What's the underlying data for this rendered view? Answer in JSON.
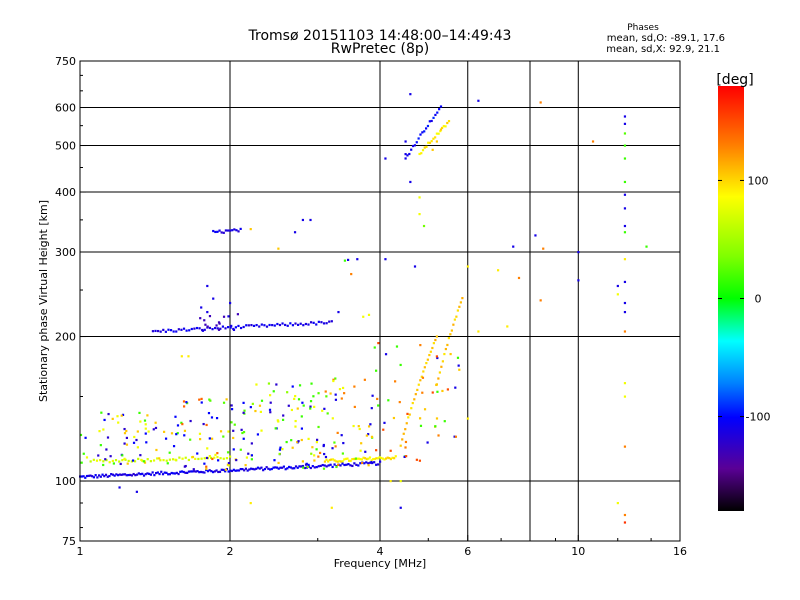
{
  "title_line1": "Tromsø 20151103 14:48:00–14:49:43",
  "title_line2": "RwPretec (8p)",
  "stats": {
    "heading": "Phases",
    "line_o": "mean, sd,O: -89.1, 17.6",
    "line_x": "mean, sd,X:  92.9, 21.1"
  },
  "colorbar": {
    "unit_label": "[deg]",
    "ticks": [
      {
        "value": 100,
        "label": "100"
      },
      {
        "value": 0,
        "label": "0"
      },
      {
        "value": -100,
        "label": "-100"
      }
    ],
    "range": [
      -180,
      180
    ]
  },
  "chart_data": {
    "type": "scatter",
    "xlabel": "Frequency [MHz]",
    "ylabel": "Stationary phase Virtual Height [km]",
    "x_scale": "log",
    "y_scale": "log",
    "xlim": [
      1,
      16
    ],
    "ylim": [
      75,
      750
    ],
    "x_ticks": [
      {
        "value": 1,
        "label": "1"
      },
      {
        "value": 2,
        "label": "2"
      },
      {
        "value": 4,
        "label": "4"
      },
      {
        "value": 6,
        "label": "6"
      },
      {
        "value": 10,
        "label": "10"
      },
      {
        "value": 16,
        "label": "16"
      }
    ],
    "x_grid": [
      2,
      4,
      6,
      8,
      10
    ],
    "y_ticks": [
      {
        "value": 75,
        "label": "75"
      },
      {
        "value": 100,
        "label": "100"
      },
      {
        "value": 200,
        "label": "200"
      },
      {
        "value": 300,
        "label": "300"
      },
      {
        "value": 400,
        "label": "400"
      },
      {
        "value": 500,
        "label": "500"
      },
      {
        "value": 600,
        "label": "600"
      },
      {
        "value": 750,
        "label": "750"
      }
    ],
    "y_grid": [
      100,
      200,
      300,
      400,
      500,
      600
    ],
    "grid": true,
    "color_variable": "phase [deg]",
    "segments": [
      {
        "x0": 1.0,
        "x1": 2.8,
        "y0": 102,
        "y1": 107,
        "phase": -110,
        "n": 130
      },
      {
        "x0": 2.8,
        "x1": 4.0,
        "y0": 107,
        "y1": 109,
        "phase": -110,
        "n": 40
      },
      {
        "x0": 1.05,
        "x1": 2.0,
        "y0": 110,
        "y1": 112,
        "phase": 80,
        "n": 45
      },
      {
        "x0": 3.1,
        "x1": 4.3,
        "y0": 110,
        "y1": 112,
        "phase": 100,
        "n": 45
      },
      {
        "x0": 1.4,
        "x1": 3.2,
        "y0": 205,
        "y1": 214,
        "phase": -110,
        "n": 70
      },
      {
        "x0": 1.85,
        "x1": 2.1,
        "y0": 330,
        "y1": 333,
        "phase": -110,
        "n": 14
      },
      {
        "x0": 4.4,
        "x1": 5.2,
        "y0": 118,
        "y1": 200,
        "phase": 110,
        "n": 25
      },
      {
        "x0": 5.2,
        "x1": 5.85,
        "y0": 160,
        "y1": 240,
        "phase": 110,
        "n": 18
      },
      {
        "x0": 4.5,
        "x1": 5.3,
        "y0": 470,
        "y1": 600,
        "phase": -100,
        "n": 20
      },
      {
        "x0": 4.8,
        "x1": 5.5,
        "y0": 480,
        "y1": 560,
        "phase": 100,
        "n": 18
      }
    ],
    "points": [
      {
        "x": 5.1,
        "y": 490,
        "phase": 110
      },
      {
        "x": 5.2,
        "y": 510,
        "phase": 110
      },
      {
        "x": 5.3,
        "y": 540,
        "phase": 110
      },
      {
        "x": 4.6,
        "y": 640,
        "phase": -110
      },
      {
        "x": 6.3,
        "y": 620,
        "phase": -110
      },
      {
        "x": 8.4,
        "y": 615,
        "phase": 130
      },
      {
        "x": 10.7,
        "y": 510,
        "phase": 130
      },
      {
        "x": 12.4,
        "y": 575,
        "phase": -110
      },
      {
        "x": 12.4,
        "y": 555,
        "phase": -110
      },
      {
        "x": 12.4,
        "y": 530,
        "phase": 30
      },
      {
        "x": 12.4,
        "y": 500,
        "phase": 20
      },
      {
        "x": 12.4,
        "y": 470,
        "phase": 20
      },
      {
        "x": 12.4,
        "y": 420,
        "phase": 20
      },
      {
        "x": 12.4,
        "y": 395,
        "phase": -110
      },
      {
        "x": 12.4,
        "y": 370,
        "phase": -110
      },
      {
        "x": 12.4,
        "y": 340,
        "phase": -110
      },
      {
        "x": 12.4,
        "y": 330,
        "phase": 20
      },
      {
        "x": 12.4,
        "y": 290,
        "phase": 100
      },
      {
        "x": 12.4,
        "y": 260,
        "phase": -110
      },
      {
        "x": 12.4,
        "y": 235,
        "phase": -110
      },
      {
        "x": 12.4,
        "y": 225,
        "phase": -110
      },
      {
        "x": 12.4,
        "y": 205,
        "phase": 130
      },
      {
        "x": 12.4,
        "y": 160,
        "phase": 90
      },
      {
        "x": 12.4,
        "y": 150,
        "phase": 90
      },
      {
        "x": 12.4,
        "y": 118,
        "phase": 130
      },
      {
        "x": 12.4,
        "y": 85,
        "phase": 130
      },
      {
        "x": 12.4,
        "y": 82,
        "phase": 160
      },
      {
        "x": 12.0,
        "y": 90,
        "phase": 90
      },
      {
        "x": 12.0,
        "y": 245,
        "phase": 90
      },
      {
        "x": 12.0,
        "y": 255,
        "phase": -110
      },
      {
        "x": 13.7,
        "y": 308,
        "phase": 20
      },
      {
        "x": 8.5,
        "y": 305,
        "phase": 130
      },
      {
        "x": 8.4,
        "y": 238,
        "phase": 130
      },
      {
        "x": 8.2,
        "y": 325,
        "phase": -110
      },
      {
        "x": 10.0,
        "y": 300,
        "phase": -110
      },
      {
        "x": 10.0,
        "y": 262,
        "phase": -110
      },
      {
        "x": 7.6,
        "y": 265,
        "phase": 130
      },
      {
        "x": 7.4,
        "y": 308,
        "phase": -110
      },
      {
        "x": 6.9,
        "y": 275,
        "phase": 100
      },
      {
        "x": 6.0,
        "y": 280,
        "phase": 100
      },
      {
        "x": 6.3,
        "y": 205,
        "phase": 100
      },
      {
        "x": 7.2,
        "y": 210,
        "phase": 100
      },
      {
        "x": 6.0,
        "y": 135,
        "phase": 100
      },
      {
        "x": 4.5,
        "y": 510,
        "phase": -110
      },
      {
        "x": 4.5,
        "y": 480,
        "phase": -110
      },
      {
        "x": 4.6,
        "y": 420,
        "phase": -110
      },
      {
        "x": 4.8,
        "y": 390,
        "phase": 90
      },
      {
        "x": 4.8,
        "y": 360,
        "phase": 90
      },
      {
        "x": 4.9,
        "y": 340,
        "phase": 40
      },
      {
        "x": 4.1,
        "y": 470,
        "phase": -110
      },
      {
        "x": 4.1,
        "y": 290,
        "phase": -110
      },
      {
        "x": 4.7,
        "y": 280,
        "phase": -110
      },
      {
        "x": 3.6,
        "y": 290,
        "phase": -110
      },
      {
        "x": 3.4,
        "y": 288,
        "phase": 20
      },
      {
        "x": 3.45,
        "y": 289,
        "phase": -110
      },
      {
        "x": 3.5,
        "y": 270,
        "phase": 130
      },
      {
        "x": 2.8,
        "y": 350,
        "phase": -110
      },
      {
        "x": 2.9,
        "y": 350,
        "phase": -110
      },
      {
        "x": 2.7,
        "y": 330,
        "phase": -110
      },
      {
        "x": 2.5,
        "y": 305,
        "phase": 110
      },
      {
        "x": 2.2,
        "y": 335,
        "phase": 110
      },
      {
        "x": 1.8,
        "y": 255,
        "phase": -110
      },
      {
        "x": 1.85,
        "y": 240,
        "phase": -110
      },
      {
        "x": 1.75,
        "y": 230,
        "phase": -110
      },
      {
        "x": 1.8,
        "y": 225,
        "phase": -110
      },
      {
        "x": 2.0,
        "y": 235,
        "phase": -110
      },
      {
        "x": 3.3,
        "y": 225,
        "phase": -110
      },
      {
        "x": 3.7,
        "y": 220,
        "phase": 90
      },
      {
        "x": 3.8,
        "y": 222,
        "phase": 90
      },
      {
        "x": 1.65,
        "y": 182,
        "phase": 100
      },
      {
        "x": 1.6,
        "y": 182,
        "phase": 100
      },
      {
        "x": 2.2,
        "y": 90,
        "phase": 100
      },
      {
        "x": 3.2,
        "y": 88,
        "phase": 100
      },
      {
        "x": 4.2,
        "y": 100,
        "phase": 100
      },
      {
        "x": 4.4,
        "y": 100,
        "phase": 90
      },
      {
        "x": 4.4,
        "y": 88,
        "phase": -110
      },
      {
        "x": 1.2,
        "y": 97,
        "phase": -110
      },
      {
        "x": 1.3,
        "y": 95,
        "phase": -110
      }
    ],
    "clouds": [
      {
        "x0": 1.0,
        "x1": 1.6,
        "y0": 108,
        "y1": 140,
        "n": 70,
        "phases": [
          -120,
          -100,
          90,
          110,
          20
        ]
      },
      {
        "x0": 1.6,
        "x1": 2.2,
        "y0": 105,
        "y1": 150,
        "n": 70,
        "phases": [
          -120,
          -100,
          90,
          110,
          30,
          140
        ]
      },
      {
        "x0": 2.2,
        "x1": 3.0,
        "y0": 105,
        "y1": 160,
        "n": 75,
        "phases": [
          -120,
          -100,
          90,
          110,
          20,
          50
        ]
      },
      {
        "x0": 3.0,
        "x1": 3.9,
        "y0": 106,
        "y1": 165,
        "n": 55,
        "phases": [
          -110,
          90,
          110,
          130,
          30
        ]
      },
      {
        "x0": 3.9,
        "x1": 5.8,
        "y0": 110,
        "y1": 200,
        "n": 50,
        "phases": [
          110,
          130,
          150,
          -110,
          20
        ]
      },
      {
        "x0": 1.7,
        "x1": 2.1,
        "y0": 200,
        "y1": 225,
        "n": 15,
        "phases": [
          -110,
          -130
        ]
      }
    ]
  }
}
